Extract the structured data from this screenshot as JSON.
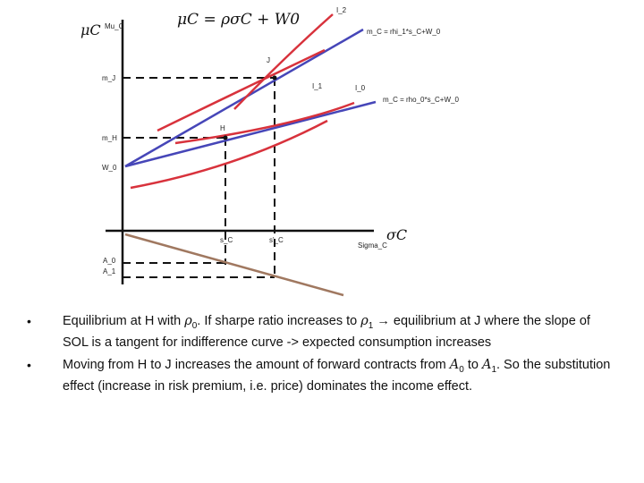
{
  "diagram": {
    "y_axis_symbol": "μC",
    "y_axis_label": "Mu_C",
    "x_axis_symbol": "σC",
    "x_axis_label": "Sigma_C",
    "equation": "μC = ρσC + W0",
    "line_upper_label": "m_C = rhi_1*s_C+W_0",
    "line_lower_label": "m_C = rho_0*s_C+W_0",
    "curve_I2": "I_2",
    "curve_I1": "I_1",
    "curve_I0": "I_0",
    "point_J": "J",
    "point_H": "H",
    "y_mJ": "m_J",
    "y_mH": "m_H",
    "y_W0": "W_0",
    "x_sC": "s_C",
    "x_sC_prime": "s'_C",
    "y_A0": "A_0",
    "y_A1": "A_1",
    "colors": {
      "sol_lines": "#4646b8",
      "indifference": "#d8323c",
      "forward": "#a07860",
      "axes": "#111111"
    }
  },
  "bullets": [
    {
      "t1": "Equilibrium at H with ",
      "m1": "ρ",
      "s1": "0",
      "t2": ". If sharpe ratio increases to ",
      "m2": "ρ",
      "s2": "1",
      "t3": " → equilibrium at J where the slope of SOL is a tangent for indifference curve -> expected consumption increases"
    },
    {
      "t1": "Moving from H to J increases the amount of forward contracts from ",
      "m1": "A",
      "s1": "0",
      "t2": " to ",
      "m2": "A",
      "s2": "1",
      "t3": ". So the substitution effect (increase in risk premium, i.e. price) dominates the income effect."
    }
  ]
}
